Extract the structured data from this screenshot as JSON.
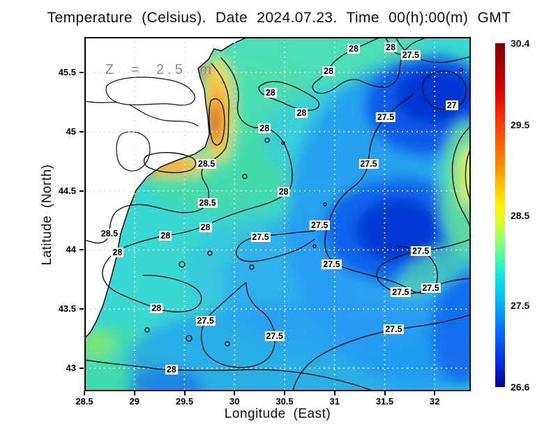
{
  "title": "Temperature (Celsius). Date 2024.07.23. Time 00(h):00(m) GMT",
  "annotation": "Z = 2.5 m",
  "axes": {
    "x_label": "Longitude (East)",
    "y_label": "Latitude (North)",
    "x_tick_labels": [
      "28.5",
      "29",
      "29.5",
      "30",
      "30.5",
      "31",
      "31.5",
      "32"
    ],
    "y_tick_labels": [
      "45.5",
      "45",
      "44.5",
      "44",
      "43.5",
      "43"
    ]
  },
  "colors": {
    "sea_base": "#3ad9d3",
    "land": "#ffffff",
    "contour_line": "#111111",
    "grid_dots": "#e8dada",
    "annotation_gray": "#8c8c8c",
    "colorbar_top": "#7f0000",
    "colorbar_bottom": "#000096"
  },
  "chart_data": {
    "type": "heatmap",
    "title": "Temperature (Celsius). Date 2024.07.23. Time 00(h):00(m) GMT",
    "xlabel": "Longitude (East)",
    "ylabel": "Latitude (North)",
    "xlim": [
      28.5,
      32.36
    ],
    "ylim": [
      42.81,
      45.8
    ],
    "x_ticks": [
      28.5,
      29,
      29.5,
      30,
      30.5,
      31,
      31.5,
      32
    ],
    "y_ticks": [
      45.5,
      45,
      44.5,
      44,
      43.5,
      43
    ],
    "grid": true,
    "depth_annotation": "Z = 2.5 m",
    "units": "Celsius",
    "colorbar": {
      "min": 26.6,
      "max": 30.4,
      "tick_labels": [
        "30.4",
        "29.5",
        "28.5",
        "27.5",
        "26.6"
      ]
    },
    "contour_levels": [
      27,
      27.5,
      28,
      28.5
    ],
    "contour_labels": [
      {
        "v": "28",
        "lon": 31.19,
        "lat": 45.7
      },
      {
        "v": "28",
        "lon": 31.56,
        "lat": 45.71
      },
      {
        "v": "27.5",
        "lon": 31.76,
        "lat": 45.65
      },
      {
        "v": "28",
        "lon": 30.94,
        "lat": 45.51
      },
      {
        "v": "28",
        "lon": 30.36,
        "lat": 45.33
      },
      {
        "v": "27",
        "lon": 32.17,
        "lat": 45.22
      },
      {
        "v": "28",
        "lon": 30.67,
        "lat": 45.16
      },
      {
        "v": "27.5",
        "lon": 31.51,
        "lat": 45.12
      },
      {
        "v": "28",
        "lon": 30.3,
        "lat": 45.03
      },
      {
        "v": "28.5",
        "lon": 29.72,
        "lat": 44.73
      },
      {
        "v": "27.5",
        "lon": 31.34,
        "lat": 44.73
      },
      {
        "v": "28.5",
        "lon": 29.73,
        "lat": 44.4
      },
      {
        "v": "28",
        "lon": 30.49,
        "lat": 44.49
      },
      {
        "v": "28",
        "lon": 29.71,
        "lat": 44.19
      },
      {
        "v": "27.5",
        "lon": 30.26,
        "lat": 44.11
      },
      {
        "v": "28",
        "lon": 29.31,
        "lat": 44.12
      },
      {
        "v": "28.5",
        "lon": 28.75,
        "lat": 44.14
      },
      {
        "v": "28",
        "lon": 28.83,
        "lat": 43.98
      },
      {
        "v": "28",
        "lon": 29.22,
        "lat": 43.51
      },
      {
        "v": "27.5",
        "lon": 29.71,
        "lat": 43.4
      },
      {
        "v": "27.5",
        "lon": 30.4,
        "lat": 43.27
      },
      {
        "v": "28",
        "lon": 29.37,
        "lat": 42.99
      },
      {
        "v": "27.5",
        "lon": 30.85,
        "lat": 44.21
      },
      {
        "v": "27.5",
        "lon": 31.86,
        "lat": 43.99
      },
      {
        "v": "27.5",
        "lon": 30.97,
        "lat": 43.88
      },
      {
        "v": "27.5",
        "lon": 31.96,
        "lat": 43.68
      },
      {
        "v": "27.5",
        "lon": 31.66,
        "lat": 43.64
      },
      {
        "v": "27.5",
        "lon": 31.59,
        "lat": 43.33
      }
    ],
    "visual_summary": "Sea-surface temperature contour map of the western Black Sea; warm (29-30.4 C) band along the NW coast, cool (26.6-27.5 C) gyre in the center-east and north-east."
  }
}
